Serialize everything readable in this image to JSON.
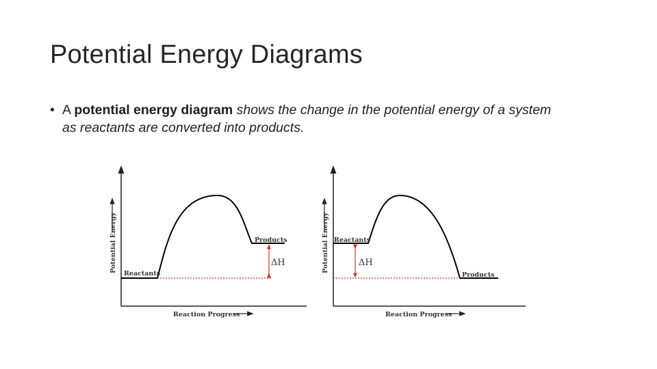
{
  "slide": {
    "title": "Potential Energy Diagrams",
    "bullet": {
      "symbol": "•",
      "lead": "A ",
      "term": "potential energy diagram",
      "rest_line1": " shows the change in the potential energy of a system",
      "rest_line2": "as reactants are converted into products."
    }
  },
  "diagrams": [
    {
      "id": "endothermic",
      "x_axis_label": "Reaction Progress",
      "y_axis_label": "Potential Energy",
      "reactants_label": "Reactants",
      "products_label": "Products",
      "delta_label": "ΔH"
    },
    {
      "id": "exothermic",
      "x_axis_label": "Reaction Progress",
      "y_axis_label": "Potential Energy",
      "reactants_label": "Reactants",
      "products_label": "Products",
      "delta_label": "ΔH"
    }
  ],
  "colors": {
    "curve": "#000000",
    "axes": "#222222",
    "delta_arrow": "#c0392b",
    "dotted_line": "#c0392b"
  }
}
